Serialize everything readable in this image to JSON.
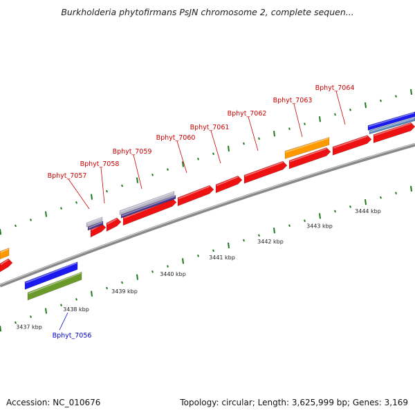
{
  "title": "Burkholderia phytofirmans PsJN chromosome 2, complete sequen...",
  "footer": {
    "accession": "Accession: NC_010676",
    "summary": "Topology: circular; Length: 3,625,999 bp; Genes: 3,169"
  },
  "colors": {
    "cds": "#ee1111",
    "rrna_orange": "#ff9900",
    "blue": "#1a1aee",
    "olive": "#6a9a2a",
    "gray_band": "#b8b8c8",
    "purple_band": "#4a3a8a",
    "backbone": "#888888",
    "tick": "#1a7a1a",
    "label_red": "#cc0000",
    "label_blue": "#0000cc"
  },
  "scale_labels": [
    "3437 kbp",
    "3438 kbp",
    "3439 kbp",
    "3440 kbp",
    "3441 kbp",
    "3442 kbp",
    "3443 kbp",
    "3444 kbp"
  ],
  "gene_labels": [
    {
      "text": "Bphyt_7056",
      "color": "blue"
    },
    {
      "text": "Bphyt_7057",
      "color": "red"
    },
    {
      "text": "Bphyt_7058",
      "color": "red"
    },
    {
      "text": "Bphyt_7059",
      "color": "red"
    },
    {
      "text": "Bphyt_7060",
      "color": "red"
    },
    {
      "text": "Bphyt_7061",
      "color": "red"
    },
    {
      "text": "Bphyt_7062",
      "color": "red"
    },
    {
      "text": "Bphyt_7063",
      "color": "red"
    },
    {
      "text": "Bphyt_7064",
      "color": "red"
    }
  ]
}
